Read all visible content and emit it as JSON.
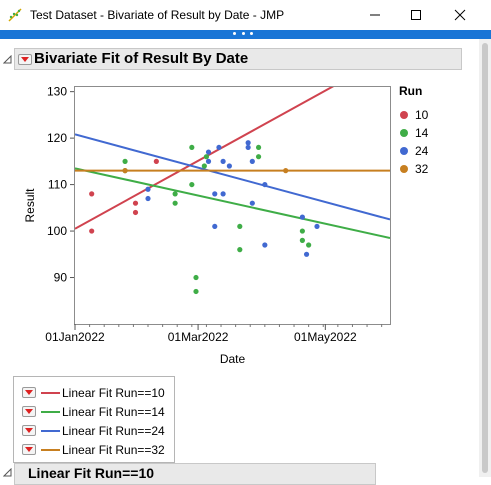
{
  "window": {
    "title": "Test Dataset - Bivariate of Result by Date - JMP",
    "icon": "jmp-scatter-icon"
  },
  "report": {
    "outline_title": "Bivariate Fit of Result By Date",
    "second_outline_title": "Linear Fit Run==10"
  },
  "legend": {
    "title": "Run",
    "items": [
      {
        "label": "10",
        "color": "#d0434f"
      },
      {
        "label": "14",
        "color": "#3fad47"
      },
      {
        "label": "24",
        "color": "#4169d1"
      },
      {
        "label": "32",
        "color": "#c77f20"
      }
    ]
  },
  "fits": [
    {
      "label": "Linear Fit Run==10",
      "color": "#d0434f"
    },
    {
      "label": "Linear Fit Run==14",
      "color": "#3fad47"
    },
    {
      "label": "Linear Fit Run==24",
      "color": "#4169d1"
    },
    {
      "label": "Linear Fit Run==32",
      "color": "#c77f20"
    }
  ],
  "chart_data": {
    "type": "scatter",
    "xlabel": "Date",
    "ylabel": "Result",
    "x_ticks": [
      "01Jan2022",
      "01Mar2022",
      "01May2022"
    ],
    "x_tick_dates": [
      "2022-01-01",
      "2022-03-01",
      "2022-05-01"
    ],
    "xlim": [
      "2022-01-01",
      "2022-06-01"
    ],
    "y_ticks": [
      90,
      100,
      110,
      120,
      130
    ],
    "ylim": [
      80,
      131
    ],
    "grid": false,
    "legend_position": "right",
    "series": [
      {
        "name": "10",
        "color": "#d0434f",
        "points": [
          {
            "x": "2022-01-09",
            "y": 108
          },
          {
            "x": "2022-01-09",
            "y": 100
          },
          {
            "x": "2022-01-30",
            "y": 106
          },
          {
            "x": "2022-01-30",
            "y": 104
          },
          {
            "x": "2022-02-09",
            "y": 115
          }
        ],
        "fit": {
          "x": [
            "2022-01-01",
            "2022-06-01"
          ],
          "y": [
            100.5,
            137.9
          ]
        }
      },
      {
        "name": "14",
        "color": "#3fad47",
        "points": [
          {
            "x": "2022-01-25",
            "y": 115
          },
          {
            "x": "2022-01-25",
            "y": 113
          },
          {
            "x": "2022-02-18",
            "y": 108
          },
          {
            "x": "2022-02-18",
            "y": 106
          },
          {
            "x": "2022-02-26",
            "y": 110
          },
          {
            "x": "2022-02-26",
            "y": 118
          },
          {
            "x": "2022-02-28",
            "y": 90
          },
          {
            "x": "2022-02-28",
            "y": 87
          },
          {
            "x": "2022-03-04",
            "y": 114
          },
          {
            "x": "2022-03-05",
            "y": 116
          },
          {
            "x": "2022-03-21",
            "y": 96
          },
          {
            "x": "2022-03-21",
            "y": 101
          },
          {
            "x": "2022-03-30",
            "y": 118
          },
          {
            "x": "2022-03-30",
            "y": 116
          },
          {
            "x": "2022-04-20",
            "y": 100
          },
          {
            "x": "2022-04-20",
            "y": 98
          },
          {
            "x": "2022-04-23",
            "y": 97
          }
        ],
        "fit": {
          "x": [
            "2022-01-01",
            "2022-06-01"
          ],
          "y": [
            113.5,
            98.5
          ]
        }
      },
      {
        "name": "24",
        "color": "#4169d1",
        "points": [
          {
            "x": "2022-02-05",
            "y": 109
          },
          {
            "x": "2022-02-05",
            "y": 107
          },
          {
            "x": "2022-03-06",
            "y": 115
          },
          {
            "x": "2022-03-06",
            "y": 117
          },
          {
            "x": "2022-03-09",
            "y": 108
          },
          {
            "x": "2022-03-09",
            "y": 101
          },
          {
            "x": "2022-03-11",
            "y": 118
          },
          {
            "x": "2022-03-13",
            "y": 115
          },
          {
            "x": "2022-03-13",
            "y": 108
          },
          {
            "x": "2022-03-16",
            "y": 114
          },
          {
            "x": "2022-03-25",
            "y": 119
          },
          {
            "x": "2022-03-25",
            "y": 118
          },
          {
            "x": "2022-03-27",
            "y": 115
          },
          {
            "x": "2022-03-27",
            "y": 106
          },
          {
            "x": "2022-04-02",
            "y": 110
          },
          {
            "x": "2022-04-02",
            "y": 97
          },
          {
            "x": "2022-04-20",
            "y": 103
          },
          {
            "x": "2022-04-22",
            "y": 95
          },
          {
            "x": "2022-04-27",
            "y": 101
          }
        ],
        "fit": {
          "x": [
            "2022-01-01",
            "2022-06-01"
          ],
          "y": [
            120.8,
            102.5
          ]
        }
      },
      {
        "name": "32",
        "color": "#c77f20",
        "points": [
          {
            "x": "2022-01-25",
            "y": 113
          },
          {
            "x": "2022-04-12",
            "y": 113
          }
        ],
        "fit": {
          "x": [
            "2022-01-01",
            "2022-06-01"
          ],
          "y": [
            113,
            113
          ]
        }
      }
    ]
  }
}
